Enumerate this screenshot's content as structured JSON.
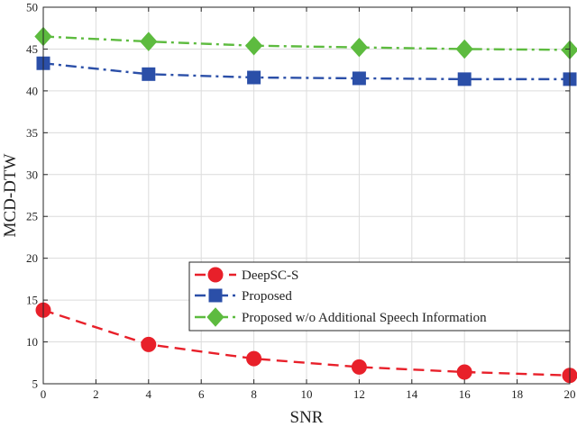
{
  "chart_data": {
    "type": "line",
    "title": "",
    "xlabel": "SNR",
    "ylabel": "MCD-DTW",
    "xlim": [
      0,
      20
    ],
    "ylim": [
      5,
      50
    ],
    "xticks": [
      0,
      2,
      4,
      6,
      8,
      10,
      12,
      14,
      16,
      18,
      20
    ],
    "yticks": [
      5,
      10,
      15,
      20,
      25,
      30,
      35,
      40,
      45,
      50
    ],
    "grid": true,
    "legend_position": "lower-right",
    "series": [
      {
        "name": "DeepSC-S",
        "x": [
          0,
          4,
          8,
          12,
          16,
          20
        ],
        "y": [
          13.8,
          9.7,
          8.0,
          7.0,
          6.4,
          6.0
        ],
        "color": "#e8202a",
        "marker": "circle",
        "line_style": "dashed"
      },
      {
        "name": "Proposed",
        "x": [
          0,
          4,
          8,
          12,
          16,
          20
        ],
        "y": [
          43.3,
          42.0,
          41.6,
          41.5,
          41.4,
          41.4
        ],
        "color": "#2b4fa8",
        "marker": "square",
        "line_style": "dash-dot"
      },
      {
        "name": "Proposed w/o Additional Speech Information",
        "x": [
          0,
          4,
          8,
          12,
          16,
          20
        ],
        "y": [
          46.5,
          45.9,
          45.4,
          45.2,
          45.0,
          44.9
        ],
        "color": "#5dbb3f",
        "marker": "diamond",
        "line_style": "dash-dot"
      }
    ]
  }
}
